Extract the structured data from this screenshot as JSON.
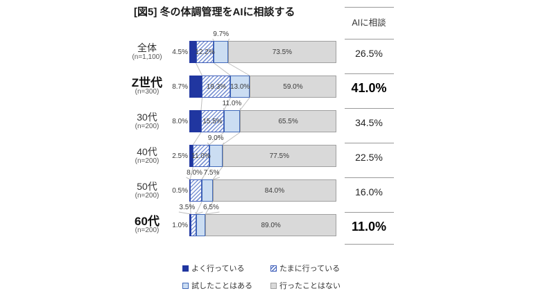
{
  "title": "[図5] 冬の体調管理をAIに相談する",
  "right_column": {
    "header": "AIに相談"
  },
  "legend": [
    {
      "label": "よく行っている",
      "swatch": "often"
    },
    {
      "label": "たまに行っている",
      "swatch": "sometimes"
    },
    {
      "label": "試したことはある",
      "swatch": "tried"
    },
    {
      "label": "行ったことはない",
      "swatch": "never"
    }
  ],
  "colors": {
    "often_fill": "#2036A0",
    "sometimes_stripe": "#7B93D4",
    "blue_border": "#3D5CB8",
    "tried_fill": "#CBDDF2",
    "never_fill": "#D9D9D9",
    "never_border": "#A0A0A0",
    "connector_line": "#BDBDBD",
    "separator_line": "#999999"
  },
  "chart_data": {
    "type": "bar",
    "stacked": true,
    "orientation": "horizontal",
    "unit": "%",
    "xlim": [
      0,
      100
    ],
    "series_names": [
      "よく行っている",
      "たまに行っている",
      "試したことはある",
      "行ったことはない"
    ],
    "rows": [
      {
        "category": "全体",
        "n_label": "(n=1,100)",
        "bold": false,
        "values": [
          4.5,
          12.2,
          9.7,
          73.5
        ],
        "consult_total": 26.5,
        "consult_bold": false,
        "label_pos": [
          "left",
          "in",
          "above",
          "in"
        ],
        "above_dx": [
          0,
          0,
          0,
          0
        ]
      },
      {
        "category": "Z世代",
        "n_label": "(n=300)",
        "bold": true,
        "values": [
          8.7,
          19.3,
          13.0,
          59.0
        ],
        "consult_total": 41.0,
        "consult_bold": true,
        "label_pos": [
          "left",
          "in",
          "in",
          "in"
        ],
        "above_dx": [
          0,
          0,
          0,
          0
        ]
      },
      {
        "category": "30代",
        "n_label": "(n=200)",
        "bold": false,
        "values": [
          8.0,
          15.5,
          11.0,
          65.5
        ],
        "consult_total": 34.5,
        "consult_bold": false,
        "label_pos": [
          "left",
          "in",
          "above",
          "in"
        ],
        "above_dx": [
          0,
          0,
          0,
          0
        ]
      },
      {
        "category": "40代",
        "n_label": "(n=200)",
        "bold": false,
        "values": [
          2.5,
          11.0,
          9.0,
          77.5
        ],
        "consult_total": 22.5,
        "consult_bold": false,
        "label_pos": [
          "left",
          "in",
          "above",
          "in"
        ],
        "above_dx": [
          0,
          0,
          0,
          0
        ]
      },
      {
        "category": "50代",
        "n_label": "(n=200)",
        "bold": false,
        "values": [
          0.5,
          8.0,
          7.5,
          84.0
        ],
        "consult_total": 16.0,
        "consult_bold": false,
        "label_pos": [
          "left",
          "above",
          "above",
          "in"
        ],
        "above_dx": [
          0,
          -2,
          6,
          0
        ]
      },
      {
        "category": "60代",
        "n_label": "(n=200)",
        "bold": true,
        "values": [
          1.0,
          3.5,
          6.5,
          89.0
        ],
        "consult_total": 11.0,
        "consult_bold": true,
        "label_pos": [
          "left",
          "above",
          "above",
          "in"
        ],
        "above_dx": [
          0,
          -9,
          15,
          0
        ]
      }
    ]
  }
}
